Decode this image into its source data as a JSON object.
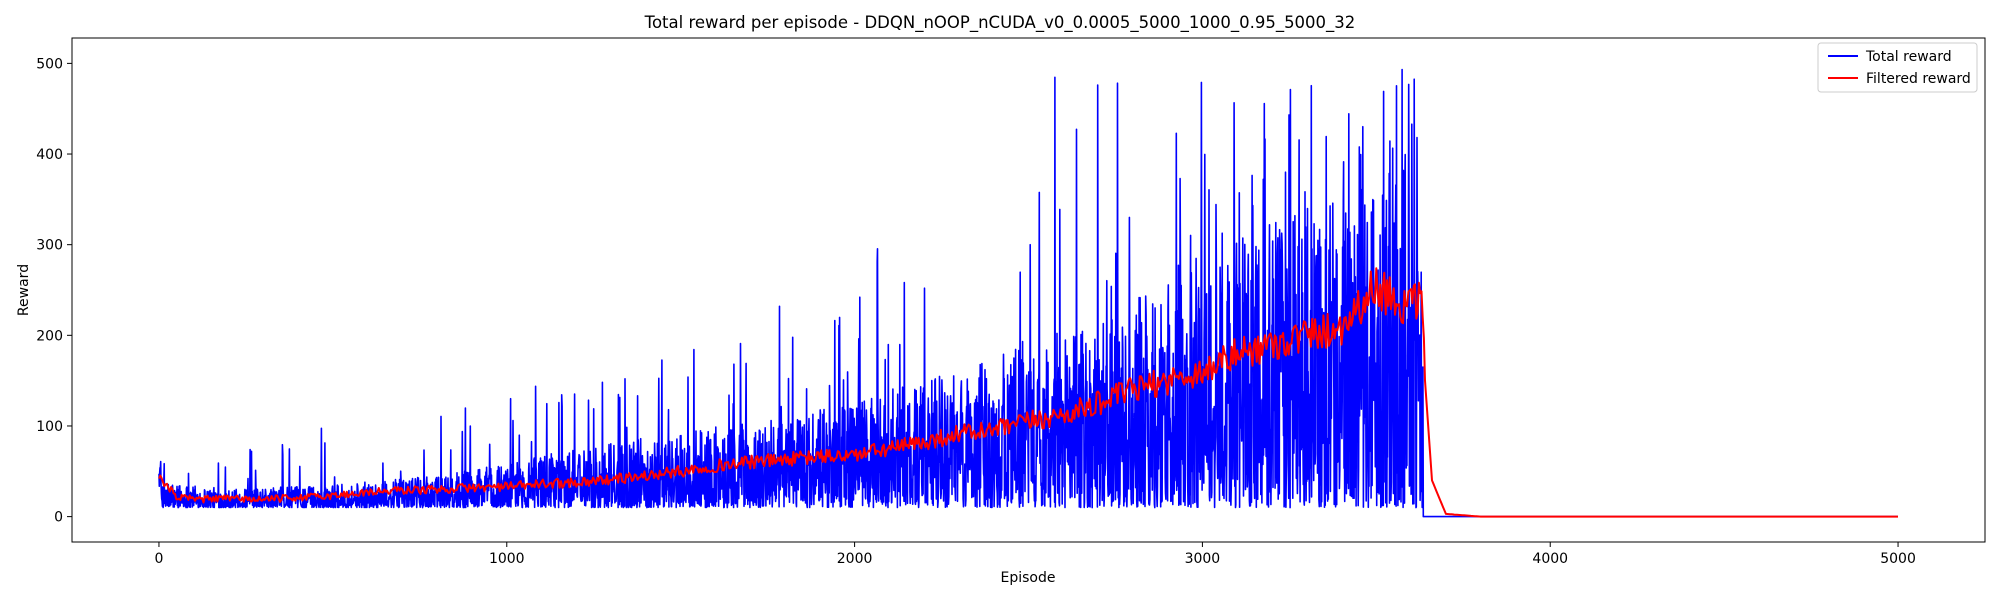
{
  "chart_data": {
    "type": "line",
    "title": "Total reward per episode - DDQN_nOOP_nCUDA_v0_0.0005_5000_1000_0.95_5000_32",
    "xlabel": "Episode",
    "ylabel": "Reward",
    "xlim": [
      -250,
      5250
    ],
    "ylim": [
      -28,
      528
    ],
    "xticks": [
      0,
      1000,
      2000,
      3000,
      4000,
      5000
    ],
    "yticks": [
      0,
      100,
      200,
      300,
      400,
      500
    ],
    "grid": false,
    "legend": {
      "placement": "top-right"
    },
    "series": [
      {
        "name": "Total reward",
        "color": "#0000ff",
        "description_points": {
          "episodes_trained": 3635,
          "episodes_total": 5000,
          "noisy_envelope": {
            "x": [
              0,
              200,
              500,
              800,
              1000,
              1200,
              1500,
              1800,
              2000,
              2200,
              2500,
              2800,
              3000,
              3200,
              3400,
              3500,
              3635
            ],
            "y_low": [
              10,
              10,
              10,
              10,
              10,
              10,
              10,
              10,
              10,
              10,
              10,
              10,
              10,
              10,
              10,
              10,
              10
            ],
            "y_typical_high": [
              40,
              30,
              35,
              45,
              60,
              75,
              95,
              110,
              130,
              150,
              190,
              240,
              280,
              330,
              380,
              420,
              420
            ],
            "y_peak": [
              62,
              85,
              120,
              110,
              155,
              140,
              190,
              240,
              310,
              365,
              495,
              500,
              500,
              500,
              500,
              500,
              500
            ]
          },
          "after_training_value": 0
        }
      },
      {
        "name": "Filtered reward",
        "color": "#ff0000",
        "x": [
          0,
          50,
          100,
          200,
          300,
          400,
          500,
          600,
          700,
          800,
          900,
          1000,
          1100,
          1200,
          1300,
          1400,
          1500,
          1600,
          1700,
          1800,
          1900,
          2000,
          2100,
          2200,
          2300,
          2400,
          2500,
          2600,
          2700,
          2800,
          2900,
          3000,
          3100,
          3200,
          3300,
          3400,
          3500,
          3550,
          3600,
          3630,
          3640,
          3660,
          3700,
          3800,
          4000,
          5000
        ],
        "y": [
          42,
          22,
          19,
          20,
          19,
          21,
          23,
          27,
          29,
          30,
          32,
          33,
          36,
          38,
          41,
          45,
          50,
          56,
          60,
          63,
          66,
          68,
          75,
          82,
          92,
          95,
          105,
          112,
          125,
          140,
          150,
          160,
          180,
          190,
          200,
          210,
          255,
          240,
          230,
          240,
          150,
          40,
          3,
          0,
          0,
          0
        ]
      }
    ]
  }
}
